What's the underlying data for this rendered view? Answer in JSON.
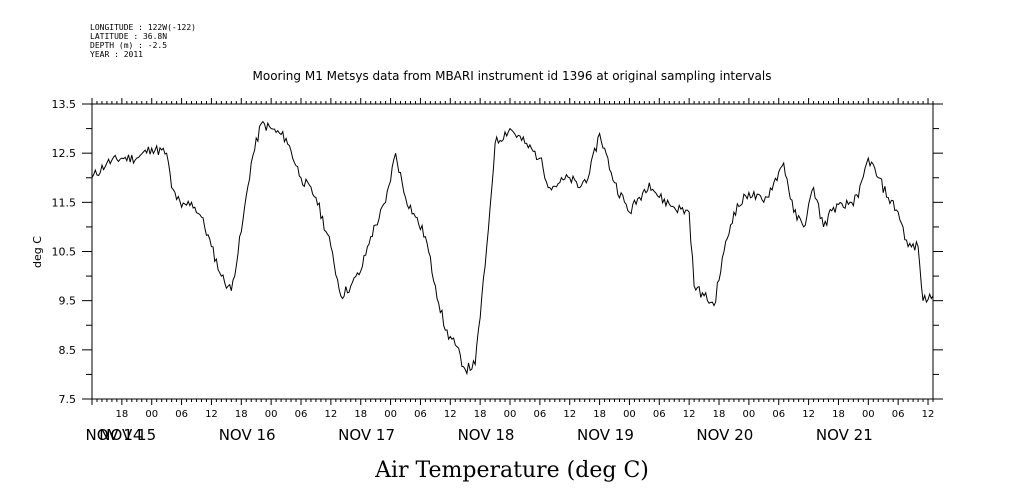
{
  "chart_data": {
    "type": "line",
    "meta": [
      "LONGITUDE : 122W(-122)",
      "LATITUDE : 36.8N",
      "DEPTH (m) : -2.5",
      "YEAR : 2011"
    ],
    "title": "Mooring M1 Metsys data from MBARI instrument id 1396 at original sampling intervals",
    "xlabel": "Air Temperature (deg C)",
    "ylabel": "deg C",
    "ylim": [
      7.5,
      13.5
    ],
    "yticks": [
      "7.5",
      "8.5",
      "9.5",
      "10.5",
      "11.5",
      "12.5",
      "13.5"
    ],
    "x_axis": {
      "start": "2011-11-14 12:00",
      "end": "2011-11-21 13:00",
      "hour_labels": [
        "18",
        "00",
        "06",
        "12",
        "18",
        "00",
        "06",
        "12",
        "18",
        "00",
        "06",
        "12",
        "18",
        "00",
        "06",
        "12",
        "18",
        "00",
        "06",
        "12",
        "18",
        "00",
        "06",
        "12",
        "18",
        "00",
        "06",
        "12",
        "18",
        "00",
        "06",
        "12"
      ],
      "day_labels": [
        "NOV 14",
        "NOV 15",
        "NOV 16",
        "NOV 17",
        "NOV 18",
        "NOV 19",
        "NOV 20",
        "NOV 21"
      ]
    },
    "series": [
      {
        "x": [
          "2011-11-14 12:00",
          "2011-11-14 15:00",
          "2011-11-14 18:00",
          "2011-11-14 21:00",
          "2011-11-15 00:00",
          "2011-11-15 03:00",
          "2011-11-15 04:00",
          "2011-11-15 06:00",
          "2011-11-15 08:00",
          "2011-11-15 10:00",
          "2011-11-15 12:00",
          "2011-11-15 14:00",
          "2011-11-15 16:00",
          "2011-11-15 18:00",
          "2011-11-15 20:00",
          "2011-11-15 22:00",
          "2011-11-16 00:00",
          "2011-11-16 03:00",
          "2011-11-16 06:00",
          "2011-11-16 09:00",
          "2011-11-16 12:00",
          "2011-11-16 14:00",
          "2011-11-16 16:00",
          "2011-11-16 18:00",
          "2011-11-16 20:00",
          "2011-11-16 23:00",
          "2011-11-17 01:00",
          "2011-11-17 03:00",
          "2011-11-17 05:00",
          "2011-11-17 07:00",
          "2011-11-17 09:00",
          "2011-11-17 11:00",
          "2011-11-17 13:00",
          "2011-11-17 15:00",
          "2011-11-17 17:00",
          "2011-11-17 19:00",
          "2011-11-17 20:00",
          "2011-11-17 21:00",
          "2011-11-18 00:00",
          "2011-11-18 03:00",
          "2011-11-18 06:00",
          "2011-11-18 08:00",
          "2011-11-18 10:00",
          "2011-11-18 12:00",
          "2011-11-18 14:00",
          "2011-11-18 16:00",
          "2011-11-18 18:00",
          "2011-11-18 21:00",
          "2011-11-19 00:00",
          "2011-11-19 02:00",
          "2011-11-19 04:00",
          "2011-11-19 06:00",
          "2011-11-19 09:00",
          "2011-11-19 12:00",
          "2011-11-19 13:00",
          "2011-11-19 15:00",
          "2011-11-19 17:00",
          "2011-11-19 19:00",
          "2011-11-19 21:00",
          "2011-11-20 00:00",
          "2011-11-20 03:00",
          "2011-11-20 05:00",
          "2011-11-20 07:00",
          "2011-11-20 09:00",
          "2011-11-20 11:00",
          "2011-11-20 13:00",
          "2011-11-20 15:00",
          "2011-11-20 17:00",
          "2011-11-20 19:00",
          "2011-11-20 22:00",
          "2011-11-21 00:00",
          "2011-11-21 02:00",
          "2011-11-21 04:00",
          "2011-11-21 06:00",
          "2011-11-21 08:00",
          "2011-11-21 10:00",
          "2011-11-21 11:00",
          "2011-11-21 13:00"
        ],
        "values": [
          12.0,
          12.3,
          12.4,
          12.4,
          12.6,
          12.5,
          11.8,
          11.4,
          11.5,
          11.2,
          10.6,
          10.0,
          9.7,
          10.9,
          12.3,
          13.1,
          13.0,
          12.8,
          12.0,
          11.6,
          10.6,
          9.6,
          9.8,
          10.1,
          10.8,
          11.5,
          12.5,
          11.6,
          11.2,
          10.8,
          9.8,
          8.9,
          8.6,
          8.1,
          8.2,
          10.2,
          11.4,
          12.7,
          13.0,
          12.7,
          12.4,
          11.8,
          11.9,
          12.0,
          11.8,
          12.1,
          12.9,
          11.9,
          11.3,
          11.6,
          11.9,
          11.6,
          11.4,
          11.3,
          9.8,
          9.6,
          9.4,
          10.5,
          11.3,
          11.7,
          11.5,
          11.9,
          12.3,
          11.3,
          11.0,
          11.8,
          11.0,
          11.4,
          11.4,
          11.6,
          12.4,
          12.0,
          11.6,
          11.3,
          10.6,
          10.6,
          9.5,
          9.6
        ]
      }
    ]
  }
}
